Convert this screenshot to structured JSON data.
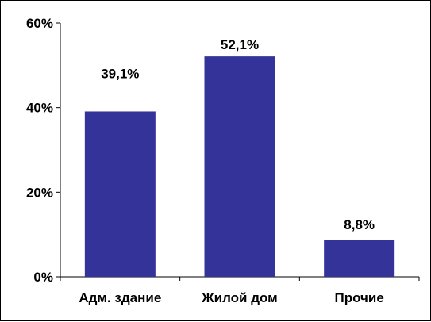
{
  "chart_data": {
    "type": "bar",
    "categories": [
      "Адм. здание",
      "Жилой дом",
      "Прочие"
    ],
    "values": [
      39.1,
      52.1,
      8.8
    ],
    "data_labels": [
      "39,1%",
      "52,1%",
      "8,8%"
    ],
    "ylim": [
      0,
      60
    ],
    "yticks": [
      0,
      20,
      40,
      60
    ],
    "ytick_labels": [
      "0%",
      "20%",
      "40%",
      "60%"
    ],
    "grid": false,
    "legend": "none",
    "bar_color": "#333399"
  }
}
